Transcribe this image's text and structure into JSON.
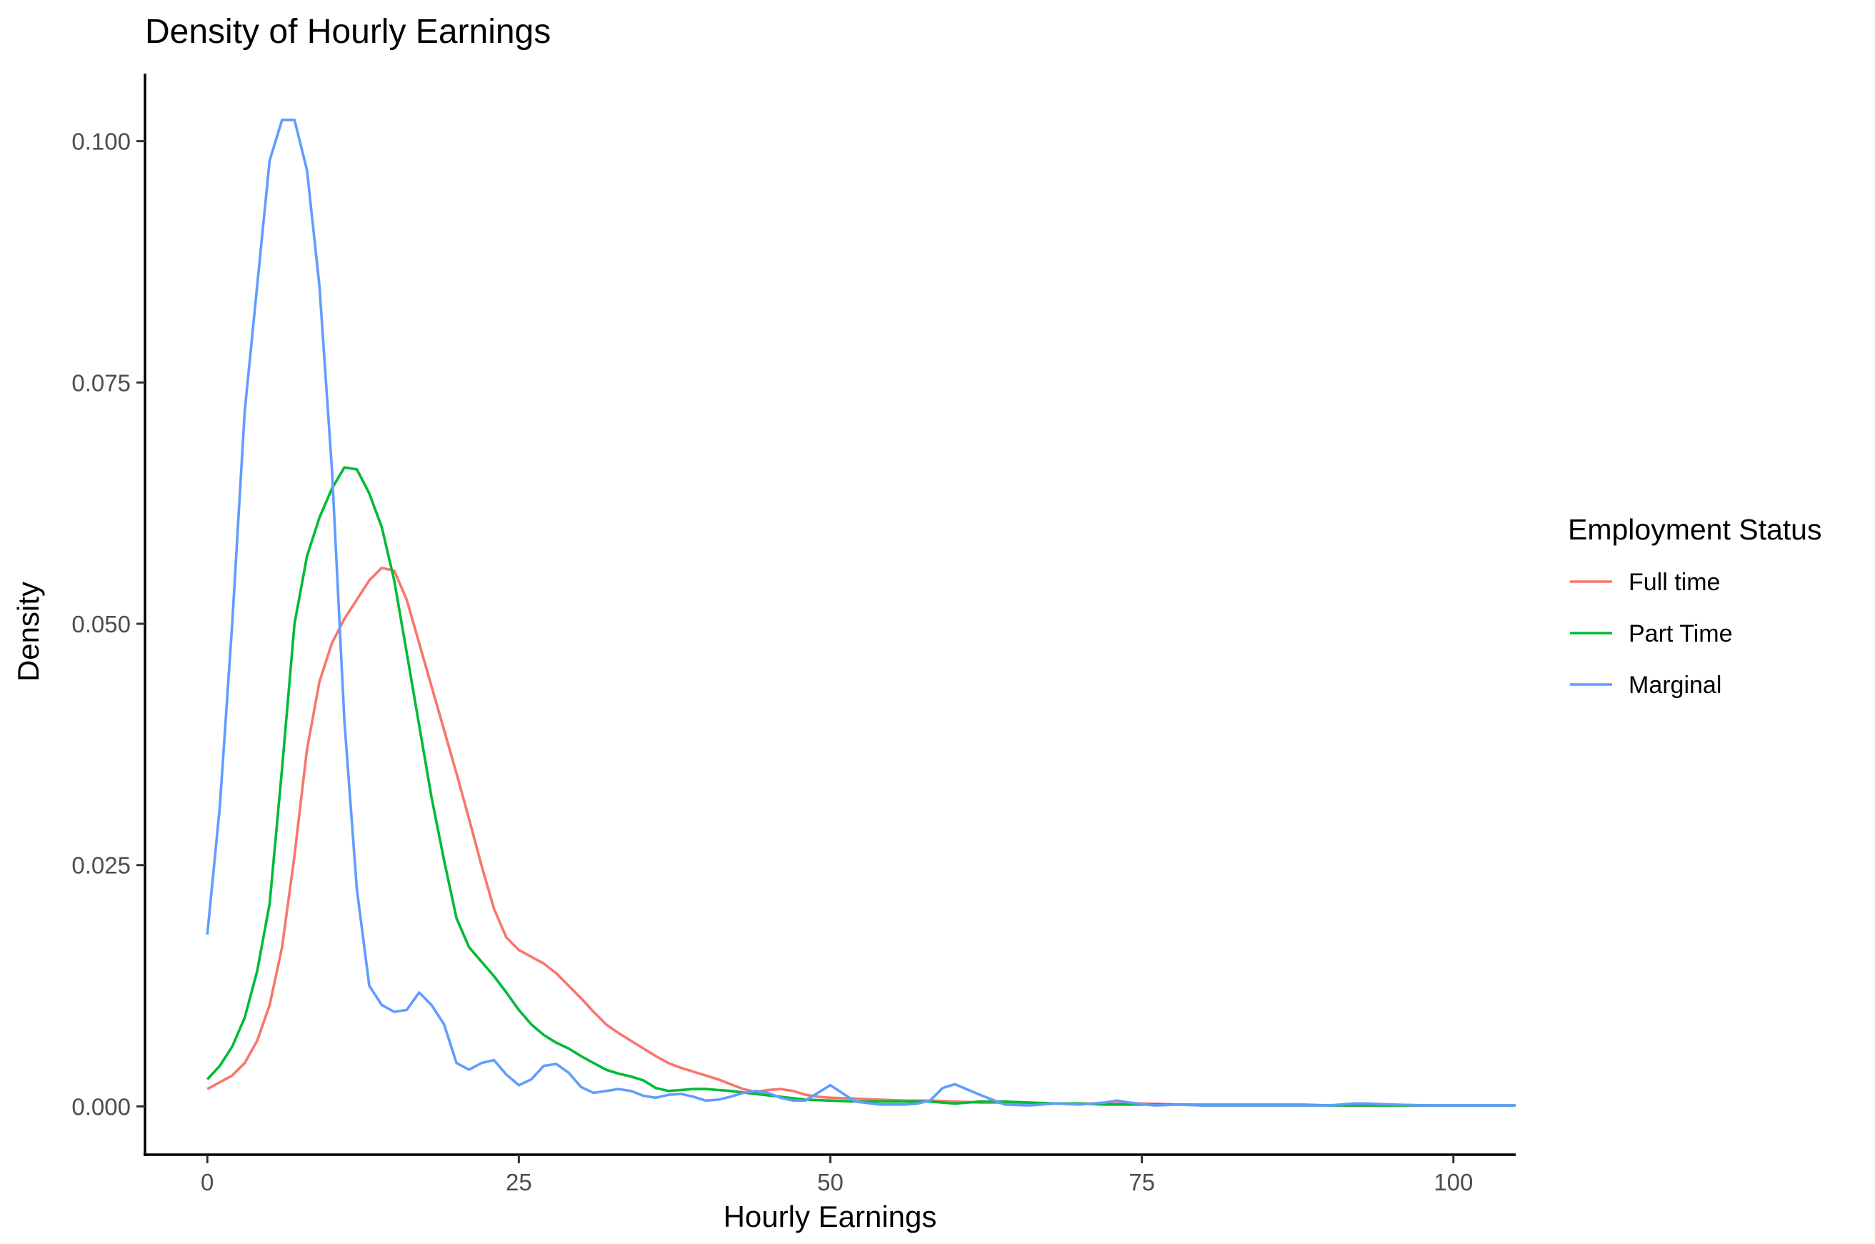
{
  "chart_data": {
    "type": "line",
    "title": "Density of Hourly Earnings",
    "xlabel": "Hourly Earnings",
    "ylabel": "Density",
    "xlim": [
      -5,
      105
    ],
    "ylim": [
      -0.005,
      0.107
    ],
    "xticks": [
      0,
      25,
      50,
      75,
      100
    ],
    "xtick_labels": [
      "0",
      "25",
      "50",
      "75",
      "100"
    ],
    "yticks": [
      0.0,
      0.025,
      0.05,
      0.075,
      0.1
    ],
    "ytick_labels": [
      "0.000",
      "0.025",
      "0.050",
      "0.075",
      "0.100"
    ],
    "grid": false,
    "legend": {
      "title": "Employment Status",
      "position": "right"
    },
    "series": [
      {
        "name": "Full time",
        "color": "#F8766D",
        "x": [
          0,
          1,
          2,
          3,
          4,
          5,
          6,
          7,
          8,
          9,
          10,
          11,
          12,
          13,
          14,
          15,
          16,
          17,
          18,
          19,
          20,
          21,
          22,
          23,
          24,
          25,
          26,
          27,
          28,
          29,
          30,
          31,
          32,
          33,
          34,
          35,
          36,
          37,
          38,
          39,
          40,
          41,
          42,
          43,
          44,
          45,
          46,
          47,
          48,
          49,
          50,
          52,
          54,
          56,
          58,
          60,
          62,
          65,
          68,
          70,
          72,
          75,
          78,
          80,
          82,
          85,
          88,
          90,
          93,
          95,
          98,
          100,
          103,
          105
        ],
        "y": [
          0.0018,
          0.0025,
          0.0032,
          0.0045,
          0.0068,
          0.0105,
          0.0165,
          0.026,
          0.037,
          0.044,
          0.048,
          0.0505,
          0.0525,
          0.0545,
          0.0558,
          0.0555,
          0.0525,
          0.048,
          0.0435,
          0.039,
          0.0345,
          0.0298,
          0.025,
          0.0205,
          0.0175,
          0.0162,
          0.0155,
          0.0148,
          0.0138,
          0.0125,
          0.0112,
          0.0098,
          0.0085,
          0.0076,
          0.0068,
          0.006,
          0.0052,
          0.0045,
          0.004,
          0.0036,
          0.0032,
          0.0028,
          0.0023,
          0.0018,
          0.0015,
          0.0017,
          0.0018,
          0.0016,
          0.0012,
          0.001,
          0.0009,
          0.0008,
          0.0007,
          0.0006,
          0.0006,
          0.0005,
          0.0004,
          0.0004,
          0.0003,
          0.0003,
          0.0003,
          0.0003,
          0.0002,
          0.0002,
          0.0002,
          0.0002,
          0.0002,
          0.0001,
          0.0001,
          0.0001,
          0.0001,
          0.0001,
          0.0001,
          0.0001
        ]
      },
      {
        "name": "Part Time",
        "color": "#00BA38",
        "x": [
          0,
          1,
          2,
          3,
          4,
          5,
          6,
          7,
          8,
          9,
          10,
          11,
          12,
          13,
          14,
          15,
          16,
          17,
          18,
          19,
          20,
          21,
          22,
          23,
          24,
          25,
          26,
          27,
          28,
          29,
          30,
          31,
          32,
          33,
          34,
          35,
          36,
          37,
          38,
          39,
          40,
          41,
          42,
          44,
          46,
          48,
          50,
          52,
          55,
          58,
          60,
          62,
          64,
          66,
          68,
          70,
          72,
          74,
          76,
          78,
          80,
          85,
          90,
          95,
          100,
          105
        ],
        "y": [
          0.0028,
          0.0042,
          0.0062,
          0.0092,
          0.014,
          0.021,
          0.035,
          0.05,
          0.057,
          0.061,
          0.064,
          0.0662,
          0.066,
          0.0635,
          0.06,
          0.0545,
          0.047,
          0.0395,
          0.032,
          0.0255,
          0.0195,
          0.0165,
          0.015,
          0.0135,
          0.0118,
          0.01,
          0.0085,
          0.0074,
          0.0066,
          0.006,
          0.0052,
          0.0045,
          0.0038,
          0.0034,
          0.0031,
          0.0027,
          0.0019,
          0.0016,
          0.0017,
          0.0018,
          0.0018,
          0.0017,
          0.0016,
          0.0013,
          0.001,
          0.0007,
          0.0006,
          0.0005,
          0.0005,
          0.0005,
          0.0003,
          0.0005,
          0.0005,
          0.0004,
          0.0003,
          0.0003,
          0.0002,
          0.0002,
          0.0002,
          0.0002,
          0.0001,
          0.0001,
          0.0001,
          0.0001,
          0.0001,
          0.0001
        ]
      },
      {
        "name": "Marginal",
        "color": "#619CFF",
        "x": [
          0,
          1,
          2,
          3,
          4,
          5,
          6,
          7,
          8,
          9,
          10,
          11,
          12,
          13,
          14,
          15,
          16,
          17,
          18,
          19,
          20,
          21,
          22,
          23,
          24,
          25,
          26,
          27,
          28,
          29,
          30,
          31,
          32,
          33,
          34,
          35,
          36,
          37,
          38,
          39,
          40,
          41,
          42,
          43,
          44,
          45,
          46,
          47,
          48,
          50,
          52,
          54,
          56,
          57,
          58,
          59,
          60,
          62,
          64,
          66,
          68,
          70,
          72,
          73,
          74,
          76,
          78,
          80,
          85,
          90,
          92,
          93,
          95,
          98,
          100,
          105
        ],
        "y": [
          0.0178,
          0.031,
          0.05,
          0.072,
          0.085,
          0.098,
          0.1022,
          0.1022,
          0.097,
          0.085,
          0.066,
          0.04,
          0.0225,
          0.0125,
          0.0105,
          0.0098,
          0.01,
          0.0118,
          0.0105,
          0.0085,
          0.0045,
          0.0038,
          0.0045,
          0.0048,
          0.0033,
          0.0022,
          0.0028,
          0.0042,
          0.0044,
          0.0035,
          0.002,
          0.0014,
          0.0016,
          0.0018,
          0.0016,
          0.0011,
          0.0009,
          0.0012,
          0.0013,
          0.001,
          0.0006,
          0.0007,
          0.001,
          0.0014,
          0.0016,
          0.0014,
          0.0009,
          0.0006,
          0.0006,
          0.0022,
          0.0005,
          0.0002,
          0.0002,
          0.0003,
          0.0006,
          0.0019,
          0.0023,
          0.0012,
          0.0002,
          0.0001,
          0.0003,
          0.0002,
          0.0004,
          0.0006,
          0.0004,
          0.0001,
          0.0002,
          0.0001,
          0.0001,
          0.0001,
          0.0003,
          0.0003,
          0.0002,
          0.0001,
          0.0001,
          0.0001
        ]
      }
    ]
  }
}
